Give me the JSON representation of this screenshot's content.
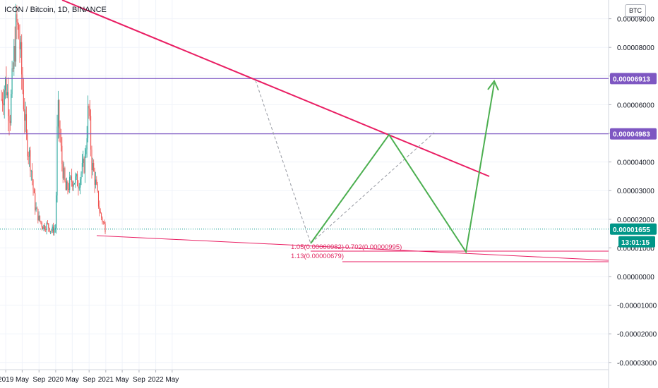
{
  "header": {
    "title": "ICON / Bitcoin, 1D, BINANCE"
  },
  "currency_button": "BTC",
  "colors": {
    "up": "#26a69a",
    "down": "#ef5350",
    "trend": "#e91e63",
    "level": "#7e57c2",
    "projection": "#4caf50",
    "price_tag": "#009688",
    "fib": "#e0245e"
  },
  "chart_data": {
    "type": "candlestick",
    "title": "ICON / Bitcoin, 1D, BINANCE",
    "x_ticks": [
      "2019",
      "May",
      "Sep",
      "2020",
      "May",
      "Sep",
      "2021",
      "May",
      "Sep",
      "2022",
      "May"
    ],
    "y_ticks": [
      "0.00009000",
      "0.00008000",
      "0.00007000",
      "0.00006000",
      "0.00005000",
      "0.00004000",
      "0.00003000",
      "0.00002000",
      "0.00001000",
      "0.00000000",
      "-0.00001000",
      "-0.00002000",
      "-0.00003000"
    ],
    "ylim": [
      -3e-05,
      9.55e-05
    ],
    "series_approx_close": [
      [
        "2018-12-01",
        6.2e-05
      ],
      [
        "2019-01-01",
        6.8e-05
      ],
      [
        "2019-02-01",
        5.6e-05
      ],
      [
        "2019-03-01",
        7.6e-05
      ],
      [
        "2019-03-20",
        8.8e-05
      ],
      [
        "2019-04-10",
        8.3e-05
      ],
      [
        "2019-05-01",
        6.8e-05
      ],
      [
        "2019-06-01",
        4.8e-05
      ],
      [
        "2019-07-01",
        4e-05
      ],
      [
        "2019-08-01",
        2.5e-05
      ],
      [
        "2019-09-01",
        2e-05
      ],
      [
        "2019-10-01",
        1.75e-05
      ],
      [
        "2019-11-01",
        1.8e-05
      ],
      [
        "2019-12-01",
        1.6e-05
      ],
      [
        "2020-01-01",
        1.7e-05
      ],
      [
        "2020-01-15",
        5.9e-05
      ],
      [
        "2020-02-15",
        4e-05
      ],
      [
        "2020-03-15",
        3e-05
      ],
      [
        "2020-05-01",
        3.4e-05
      ],
      [
        "2020-06-15",
        3.3e-05
      ],
      [
        "2020-08-01",
        4e-05
      ],
      [
        "2020-08-28",
        6e-05
      ],
      [
        "2020-09-20",
        4e-05
      ],
      [
        "2020-10-20",
        3.2e-05
      ],
      [
        "2020-11-20",
        2.2e-05
      ],
      [
        "2020-12-20",
        1.8e-05
      ],
      [
        "2021-01-01",
        1.65e-05
      ]
    ],
    "horizontal_levels": [
      {
        "label": "0.00006913",
        "value": 6.913e-05
      },
      {
        "label": "0.00004983",
        "value": 4.983e-05
      }
    ],
    "current_price": {
      "label": "0.00001655",
      "value": 1.655e-05,
      "countdown": "13:01:15"
    },
    "fib_labels": [
      "1.05(0.00000982)",
      "0.702(0.00000995)",
      "1.13(0.00000679)"
    ]
  }
}
